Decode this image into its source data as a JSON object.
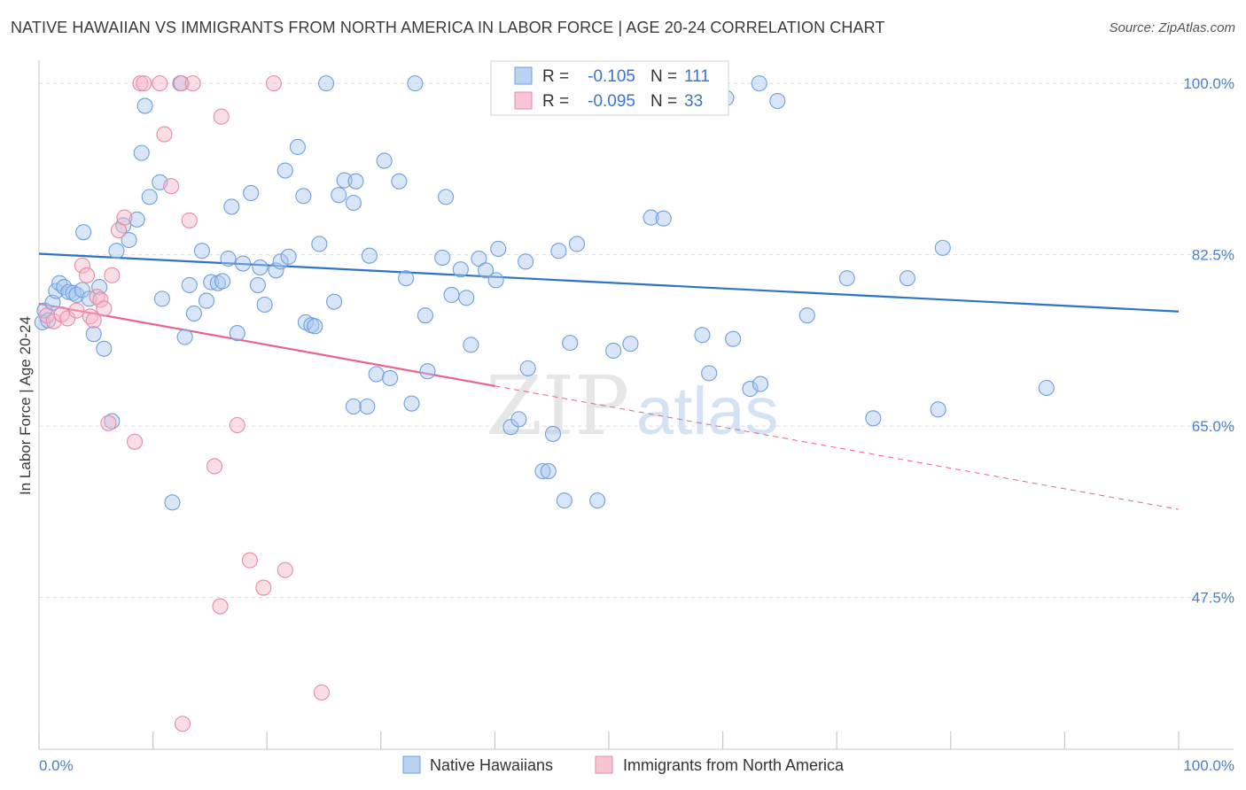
{
  "title": "NATIVE HAWAIIAN VS IMMIGRANTS FROM NORTH AMERICA IN LABOR FORCE | AGE 20-24 CORRELATION CHART",
  "source": "Source: ZipAtlas.com",
  "chart_data": {
    "type": "scatter",
    "ylabel": "In Labor Force | Age 20-24",
    "xlim": [
      0,
      100
    ],
    "ylim": [
      32,
      102
    ],
    "x_tick_labels": [
      "0.0%",
      "100.0%"
    ],
    "y_ticks": [
      {
        "value": 100.0,
        "label": "100.0%"
      },
      {
        "value": 82.5,
        "label": "82.5%"
      },
      {
        "value": 65.0,
        "label": "65.0%"
      },
      {
        "value": 47.5,
        "label": "47.5%"
      }
    ],
    "legend_box": [
      {
        "r_label": "R =",
        "r_value": "-0.105",
        "n_label": "N =",
        "n_value": "111",
        "color": "#a9c8ef"
      },
      {
        "r_label": "R =",
        "r_value": "-0.095",
        "n_label": "N =",
        "n_value": "33",
        "color": "#f5b6c8"
      }
    ],
    "series": [
      {
        "name": "Native Hawaiians",
        "color": "#a9c8ef",
        "stroke": "#6f9fdf",
        "trend": {
          "x": [
            0,
            100
          ],
          "y": [
            82.6,
            76.7
          ],
          "color": "#2f73c9"
        },
        "points": [
          [
            0.3,
            75.6
          ],
          [
            0.5,
            76.8
          ],
          [
            0.8,
            75.8
          ],
          [
            1.2,
            77.6
          ],
          [
            1.5,
            78.8
          ],
          [
            1.8,
            79.6
          ],
          [
            2.2,
            79.2
          ],
          [
            2.6,
            78.7
          ],
          [
            3.0,
            78.6
          ],
          [
            3.3,
            78.4
          ],
          [
            3.8,
            78.9
          ],
          [
            3.9,
            84.8
          ],
          [
            4.4,
            78.0
          ],
          [
            4.8,
            74.4
          ],
          [
            5.3,
            79.2
          ],
          [
            5.7,
            72.9
          ],
          [
            6.4,
            65.5
          ],
          [
            6.8,
            82.9
          ],
          [
            7.4,
            85.5
          ],
          [
            7.9,
            84.0
          ],
          [
            8.6,
            86.1
          ],
          [
            9.0,
            92.9
          ],
          [
            9.3,
            97.7
          ],
          [
            9.7,
            88.4
          ],
          [
            10.6,
            89.9
          ],
          [
            10.8,
            78.0
          ],
          [
            11.7,
            57.2
          ],
          [
            12.4,
            100.0
          ],
          [
            12.8,
            74.1
          ],
          [
            13.2,
            79.4
          ],
          [
            13.6,
            76.5
          ],
          [
            14.3,
            82.9
          ],
          [
            14.7,
            77.8
          ],
          [
            15.1,
            79.7
          ],
          [
            15.7,
            79.6
          ],
          [
            16.1,
            79.8
          ],
          [
            16.6,
            82.1
          ],
          [
            16.9,
            87.4
          ],
          [
            17.4,
            74.5
          ],
          [
            17.9,
            81.6
          ],
          [
            18.6,
            88.8
          ],
          [
            19.2,
            79.4
          ],
          [
            19.4,
            81.2
          ],
          [
            19.8,
            77.4
          ],
          [
            20.8,
            80.9
          ],
          [
            21.2,
            81.8
          ],
          [
            21.6,
            91.1
          ],
          [
            21.9,
            82.3
          ],
          [
            22.7,
            93.5
          ],
          [
            23.2,
            88.5
          ],
          [
            23.4,
            75.6
          ],
          [
            23.9,
            75.3
          ],
          [
            24.2,
            75.2
          ],
          [
            24.6,
            83.6
          ],
          [
            25.2,
            100.0
          ],
          [
            25.9,
            77.7
          ],
          [
            26.3,
            88.6
          ],
          [
            26.8,
            90.1
          ],
          [
            27.6,
            87.8
          ],
          [
            27.8,
            90.0
          ],
          [
            27.6,
            67.0
          ],
          [
            28.8,
            67.0
          ],
          [
            29.0,
            82.4
          ],
          [
            29.6,
            70.3
          ],
          [
            30.3,
            92.1
          ],
          [
            30.8,
            69.9
          ],
          [
            31.6,
            90.0
          ],
          [
            32.2,
            80.1
          ],
          [
            32.7,
            67.3
          ],
          [
            33.0,
            100.0
          ],
          [
            33.9,
            76.3
          ],
          [
            34.1,
            70.6
          ],
          [
            35.4,
            82.2
          ],
          [
            35.7,
            88.4
          ],
          [
            36.2,
            78.4
          ],
          [
            37.0,
            81.0
          ],
          [
            37.5,
            78.1
          ],
          [
            37.9,
            73.3
          ],
          [
            38.6,
            82.1
          ],
          [
            39.2,
            80.9
          ],
          [
            40.1,
            79.9
          ],
          [
            40.3,
            83.1
          ],
          [
            41.4,
            64.9
          ],
          [
            42.1,
            65.7
          ],
          [
            42.7,
            81.8
          ],
          [
            42.9,
            70.9
          ],
          [
            44.2,
            60.4
          ],
          [
            44.7,
            60.4
          ],
          [
            45.1,
            64.2
          ],
          [
            45.6,
            82.9
          ],
          [
            46.1,
            57.4
          ],
          [
            46.6,
            73.5
          ],
          [
            47.2,
            83.6
          ],
          [
            49.0,
            57.4
          ],
          [
            50.4,
            72.7
          ],
          [
            51.9,
            73.4
          ],
          [
            53.7,
            86.3
          ],
          [
            54.8,
            86.2
          ],
          [
            56.6,
            100.0
          ],
          [
            58.2,
            74.3
          ],
          [
            58.8,
            70.4
          ],
          [
            60.3,
            98.5
          ],
          [
            60.9,
            73.9
          ],
          [
            62.4,
            68.8
          ],
          [
            63.2,
            100.0
          ],
          [
            63.3,
            69.3
          ],
          [
            64.8,
            98.2
          ],
          [
            67.4,
            76.3
          ],
          [
            70.9,
            80.1
          ],
          [
            73.2,
            65.8
          ],
          [
            76.2,
            80.1
          ],
          [
            78.9,
            66.7
          ],
          [
            79.3,
            83.2
          ],
          [
            88.4,
            68.9
          ]
        ]
      },
      {
        "name": "Immigrants from North America",
        "color": "#f5b6c8",
        "stroke": "#e88aa5",
        "trend": {
          "x": [
            0,
            40
          ],
          "y": [
            77.5,
            69.1
          ],
          "color": "#e8638e",
          "dashed_to": [
            100,
            56.5
          ]
        },
        "points": [
          [
            0.7,
            76.3
          ],
          [
            1.3,
            75.7
          ],
          [
            2.0,
            76.4
          ],
          [
            2.5,
            76.0
          ],
          [
            3.3,
            76.8
          ],
          [
            3.8,
            81.4
          ],
          [
            4.2,
            80.4
          ],
          [
            4.5,
            76.2
          ],
          [
            4.8,
            75.8
          ],
          [
            5.1,
            78.2
          ],
          [
            5.4,
            77.9
          ],
          [
            5.7,
            77.0
          ],
          [
            6.1,
            65.3
          ],
          [
            6.4,
            80.4
          ],
          [
            7.0,
            85.0
          ],
          [
            7.5,
            86.3
          ],
          [
            8.4,
            63.4
          ],
          [
            8.9,
            100.0
          ],
          [
            9.2,
            100.0
          ],
          [
            10.6,
            100.0
          ],
          [
            11.0,
            94.8
          ],
          [
            11.6,
            89.5
          ],
          [
            12.5,
            100.0
          ],
          [
            13.2,
            86.0
          ],
          [
            13.5,
            100.0
          ],
          [
            15.4,
            60.9
          ],
          [
            15.9,
            46.6
          ],
          [
            17.4,
            65.1
          ],
          [
            18.5,
            51.3
          ],
          [
            19.7,
            48.5
          ],
          [
            20.6,
            100.0
          ],
          [
            21.6,
            50.3
          ],
          [
            24.8,
            37.8
          ],
          [
            12.6,
            34.6
          ],
          [
            16.0,
            96.6
          ],
          [
            40.6,
            100.0
          ]
        ]
      }
    ]
  },
  "watermark": {
    "zip": "ZIP",
    "atlas": "atlas"
  }
}
